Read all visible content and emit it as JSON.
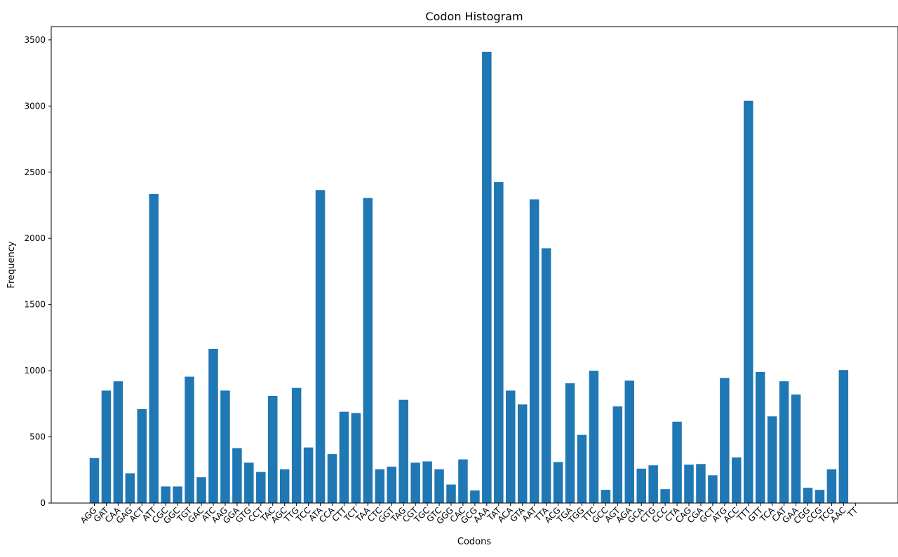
{
  "chart_data": {
    "type": "bar",
    "title": "Codon Histogram",
    "xlabel": "Codons",
    "ylabel": "Frequency",
    "ylim": [
      0,
      3600
    ],
    "yticks": [
      0,
      500,
      1000,
      1500,
      2000,
      2500,
      3000,
      3500
    ],
    "grid": false,
    "bar_color": "#1f77b4",
    "categories": [
      "AGG",
      "GAT",
      "CAA",
      "GAG",
      "ACT",
      "ATT",
      "CGC",
      "GGC",
      "TGT",
      "GAC",
      "ATC",
      "AAG",
      "GGA",
      "GTG",
      "CCT",
      "TAC",
      "AGC",
      "TTG",
      "TCC",
      "ATA",
      "CCA",
      "CTT",
      "TCT",
      "TAA",
      "CTC",
      "GGT",
      "TAG",
      "CGT",
      "TGC",
      "GTC",
      "GGG",
      "CAC",
      "GCG",
      "AAA",
      "TAT",
      "ACA",
      "GTA",
      "AAT",
      "TTA",
      "ACG",
      "TGA",
      "TGG",
      "TTC",
      "GCC",
      "AGT",
      "AGA",
      "GCA",
      "CTG",
      "CCC",
      "CTA",
      "CAG",
      "CGA",
      "GCT",
      "ATG",
      "ACC",
      "TTT",
      "GTT",
      "TCA",
      "CAT",
      "GAA",
      "CGG",
      "CCG",
      "TCG",
      "AAC",
      "TT"
    ],
    "values": [
      340,
      850,
      920,
      225,
      710,
      2335,
      125,
      125,
      955,
      195,
      1165,
      850,
      415,
      305,
      235,
      810,
      255,
      870,
      420,
      2365,
      370,
      690,
      680,
      2305,
      255,
      275,
      780,
      305,
      315,
      255,
      140,
      330,
      95,
      3410,
      2425,
      850,
      745,
      2295,
      1925,
      310,
      905,
      515,
      1000,
      100,
      730,
      925,
      260,
      285,
      105,
      615,
      290,
      295,
      210,
      945,
      345,
      3040,
      990,
      655,
      920,
      820,
      115,
      100,
      255,
      1005,
      0
    ]
  }
}
